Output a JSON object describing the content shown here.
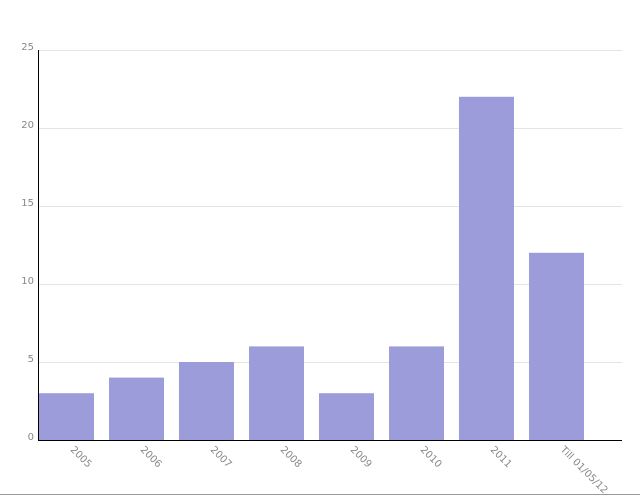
{
  "chart_data": {
    "type": "bar",
    "categories": [
      "2005",
      "2006",
      "2007",
      "2008",
      "2009",
      "2010",
      "2011",
      "Till 01/05/12"
    ],
    "values": [
      3,
      4,
      5,
      6,
      3,
      6,
      22,
      12
    ],
    "color": "#9c9cdb",
    "ylim": [
      0,
      25
    ],
    "yticks": [
      0,
      5,
      10,
      15,
      20,
      25
    ],
    "grid": true
  }
}
